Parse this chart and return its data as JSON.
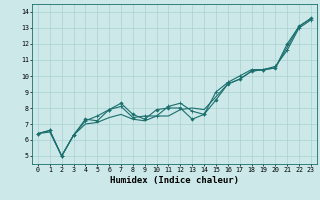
{
  "title": "",
  "xlabel": "Humidex (Indice chaleur)",
  "ylabel": "",
  "xlim": [
    -0.5,
    23.5
  ],
  "ylim": [
    4.5,
    14.5
  ],
  "xticks": [
    0,
    1,
    2,
    3,
    4,
    5,
    6,
    7,
    8,
    9,
    10,
    11,
    12,
    13,
    14,
    15,
    16,
    17,
    18,
    19,
    20,
    21,
    22,
    23
  ],
  "yticks": [
    5,
    6,
    7,
    8,
    9,
    10,
    11,
    12,
    13,
    14
  ],
  "bg_color": "#cce8e8",
  "grid_color": "#aad0d0",
  "line_color": "#1a6e6e",
  "line1_x": [
    0,
    1,
    2,
    3,
    4,
    5,
    6,
    7,
    8,
    9,
    10,
    11,
    12,
    13,
    14,
    15,
    16,
    17,
    18,
    19,
    20,
    21,
    22,
    23
  ],
  "line1_y": [
    6.4,
    6.6,
    5.0,
    6.3,
    7.3,
    7.2,
    7.9,
    8.3,
    7.6,
    7.3,
    7.9,
    8.0,
    8.0,
    7.3,
    7.6,
    8.5,
    9.5,
    9.8,
    10.3,
    10.4,
    10.5,
    12.0,
    13.1,
    13.6
  ],
  "line2_x": [
    0,
    1,
    2,
    3,
    4,
    5,
    6,
    7,
    8,
    9,
    10,
    11,
    12,
    13,
    14,
    15,
    16,
    17,
    18,
    19,
    20,
    21,
    22,
    23
  ],
  "line2_y": [
    6.4,
    6.6,
    5.0,
    6.3,
    7.2,
    7.5,
    7.9,
    8.1,
    7.4,
    7.5,
    7.5,
    8.1,
    8.3,
    7.8,
    7.6,
    9.0,
    9.6,
    10.0,
    10.4,
    10.4,
    10.6,
    11.6,
    13.0,
    13.5
  ],
  "line3_x": [
    0,
    1,
    2,
    3,
    4,
    5,
    6,
    7,
    8,
    9,
    10,
    11,
    12,
    13,
    14,
    15,
    16,
    17,
    18,
    19,
    20,
    21,
    22,
    23
  ],
  "line3_y": [
    6.4,
    6.5,
    5.0,
    6.3,
    7.0,
    7.1,
    7.4,
    7.6,
    7.3,
    7.2,
    7.5,
    7.5,
    7.9,
    8.0,
    7.9,
    8.7,
    9.5,
    9.8,
    10.3,
    10.4,
    10.5,
    11.8,
    13.1,
    13.6
  ],
  "font_family": "monospace",
  "tick_fontsize": 4.8,
  "label_fontsize": 6.5
}
